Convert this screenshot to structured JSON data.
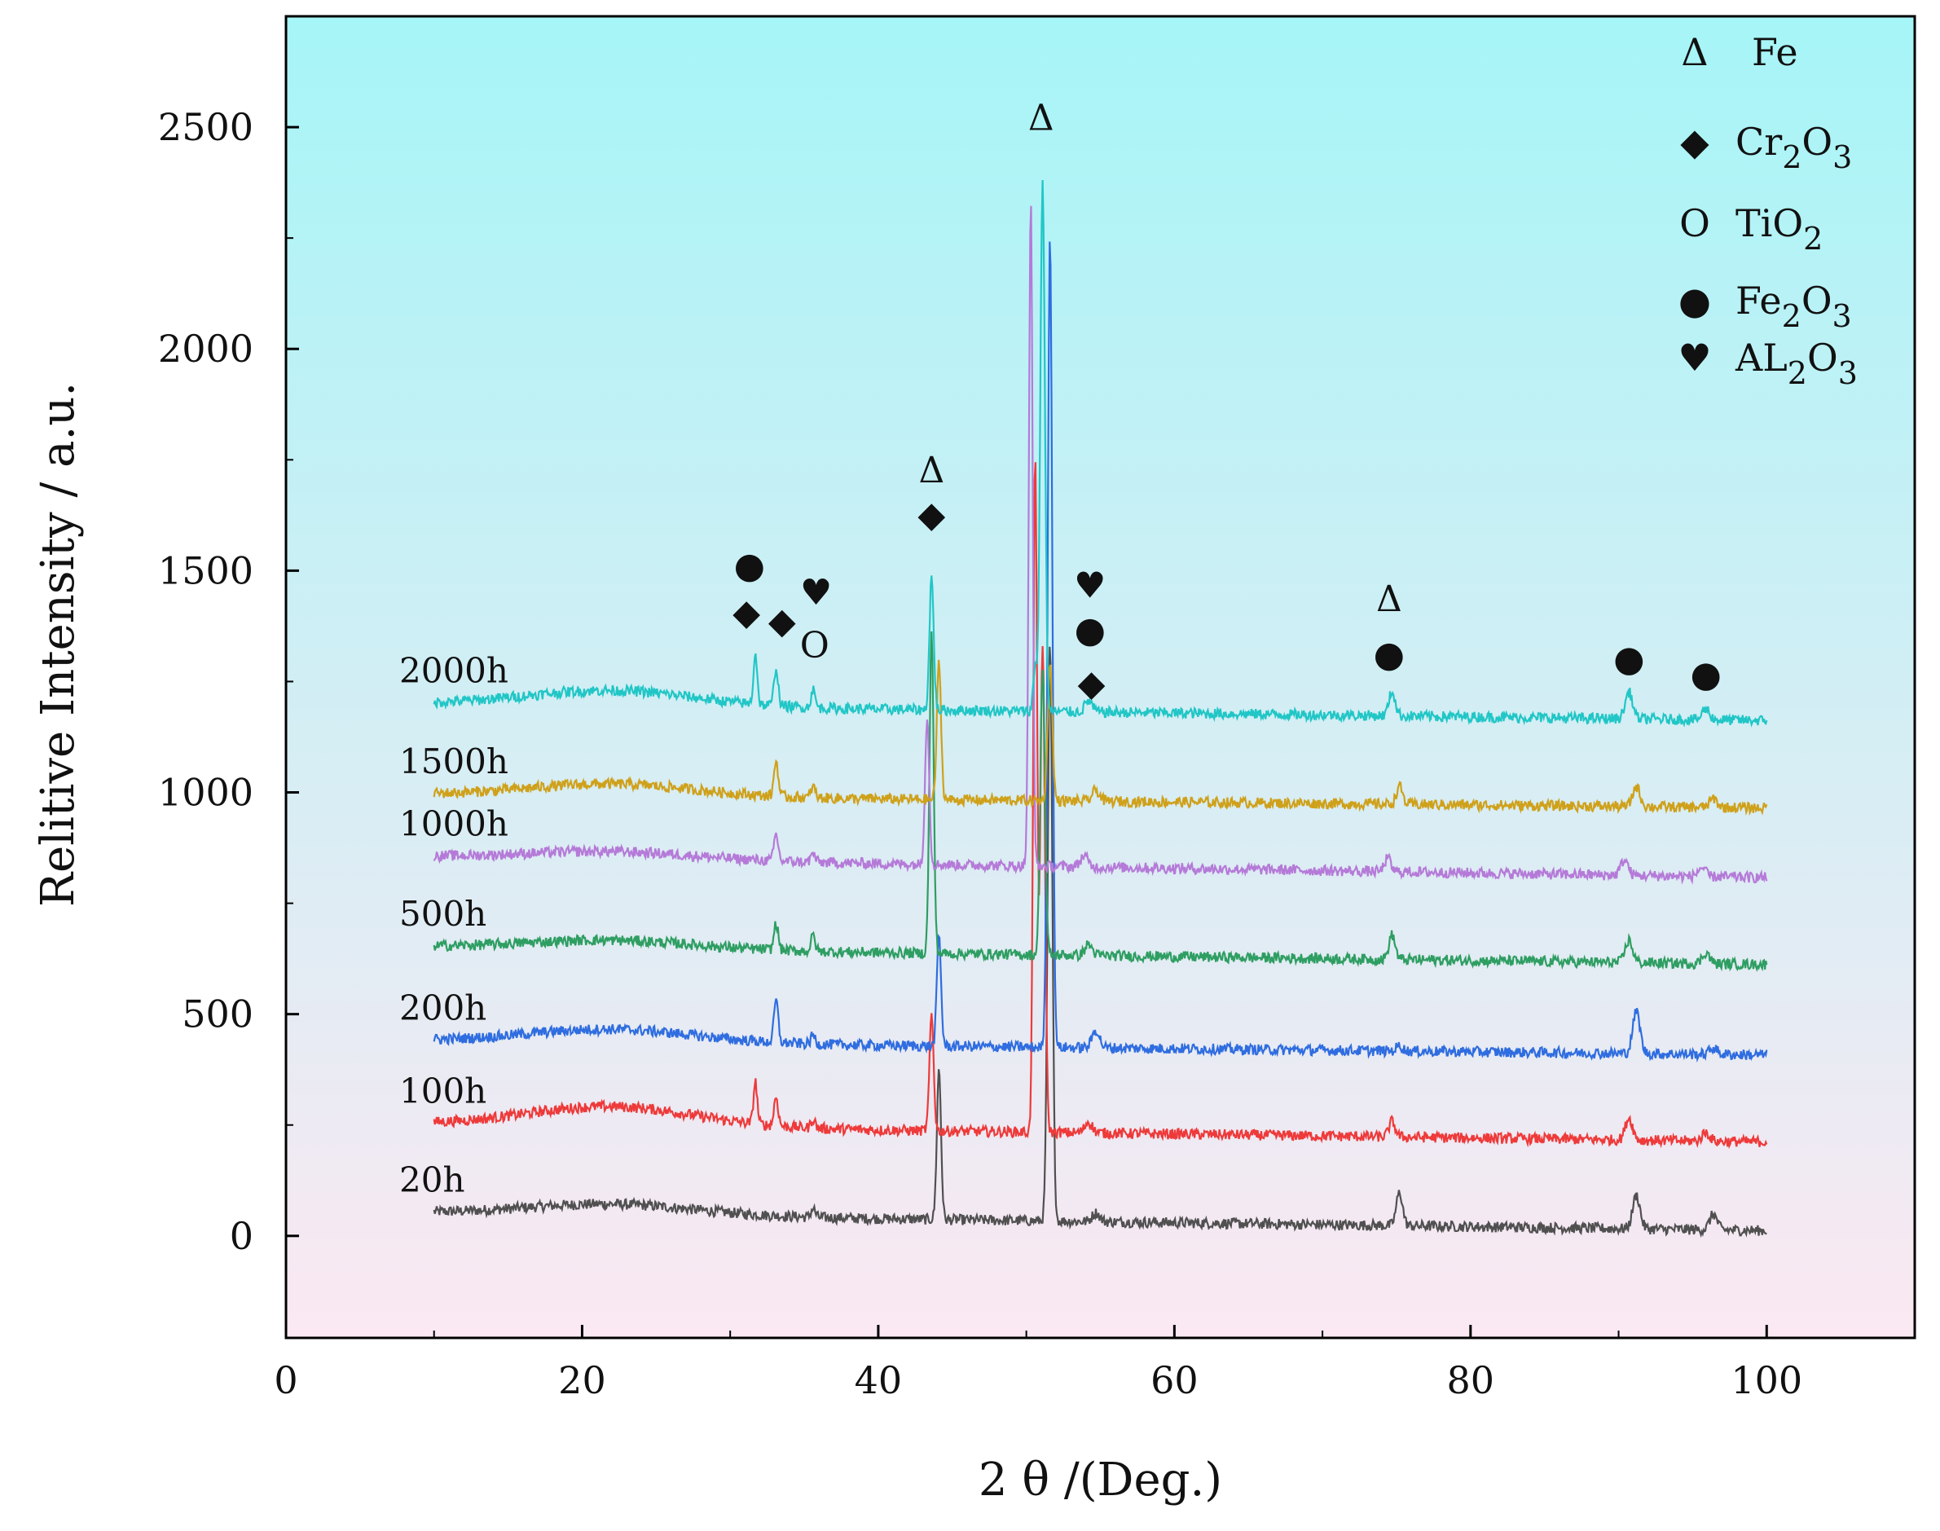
{
  "chart_data": {
    "type": "line",
    "xlabel": "2 θ /(Deg.)",
    "ylabel": "Relitive Intensity / a.u.",
    "xlim": [
      0,
      110
    ],
    "ylim": [
      -230,
      2750
    ],
    "x_ticks": [
      0,
      20,
      40,
      60,
      80,
      100
    ],
    "x_tick_labels": [
      "0",
      "20",
      "40",
      "60",
      "80",
      "100"
    ],
    "y_ticks": [
      0,
      500,
      1000,
      1500,
      2000,
      2500
    ],
    "y_tick_labels": [
      "0",
      "500",
      "1000",
      "1500",
      "2000",
      "2500"
    ],
    "background": {
      "top_color": "#a6f5f7",
      "bottom_color": "#fbe8f2"
    },
    "legend": {
      "position": "top-right",
      "entries": [
        {
          "symbol": "Δ",
          "label": "Fe",
          "label_main": "Fe",
          "label_sub": ""
        },
        {
          "symbol": "◆",
          "label": "Cr2O3",
          "label_main": "Cr",
          "label_sub": "2",
          "label_rest": "O",
          "label_sub2": "3"
        },
        {
          "symbol": "O",
          "label": "TiO2",
          "label_main": "TiO",
          "label_sub": "2",
          "label_rest": "",
          "label_sub2": ""
        },
        {
          "symbol": "●",
          "label": "Fe2O3",
          "label_main": "Fe",
          "label_sub": "2",
          "label_rest": "O",
          "label_sub2": "3"
        },
        {
          "symbol": "♥",
          "label": "AL2O3",
          "label_main": "AL",
          "label_sub": "2",
          "label_rest": "O",
          "label_sub2": "3"
        }
      ]
    },
    "peaks": [
      {
        "pos": 31.7,
        "width": 0.18
      },
      {
        "pos": 33.1,
        "width": 0.2
      },
      {
        "pos": 35.6,
        "width": 0.2
      },
      {
        "pos": 43.6,
        "width": 0.2
      },
      {
        "pos": 50.6,
        "width": 0.18
      },
      {
        "pos": 51.1,
        "width": 0.22
      },
      {
        "pos": 54.2,
        "width": 0.35
      },
      {
        "pos": 74.7,
        "width": 0.3
      },
      {
        "pos": 90.7,
        "width": 0.35
      },
      {
        "pos": 95.9,
        "width": 0.35
      }
    ],
    "series": [
      {
        "name": "20h",
        "label": "20h",
        "color": "#505050",
        "baseline_start": 52,
        "baseline_end": 12,
        "hump": 25,
        "peak_heights": [
          0,
          0,
          20,
          340,
          0,
          1300,
          20,
          75,
          75,
          35
        ],
        "peak_shift": 0.5
      },
      {
        "name": "100h",
        "label": "100h",
        "color": "#ee3a3a",
        "baseline_start": 252,
        "baseline_end": 212,
        "hump": 45,
        "peak_heights": [
          95,
          65,
          20,
          260,
          1530,
          1100,
          25,
          35,
          50,
          20
        ],
        "peak_shift": 0
      },
      {
        "name": "200h",
        "label": "200h",
        "color": "#2f6de0",
        "baseline_start": 440,
        "baseline_end": 408,
        "hump": 30,
        "peak_heights": [
          0,
          95,
          20,
          250,
          0,
          1830,
          40,
          12,
          95,
          15
        ],
        "peak_shift": 0.5
      },
      {
        "name": "500h",
        "label": "500h",
        "color": "#2e9e62",
        "baseline_start": 652,
        "baseline_end": 612,
        "hump": 20,
        "peak_heights": [
          0,
          60,
          35,
          720,
          0,
          650,
          25,
          55,
          50,
          25
        ],
        "peak_shift": 0
      },
      {
        "name": "1000h",
        "label": "1000h",
        "color": "#b57ad8",
        "baseline_start": 855,
        "baseline_end": 808,
        "hump": 18,
        "peak_heights": [
          0,
          60,
          20,
          330,
          1500,
          0,
          25,
          30,
          35,
          20
        ],
        "peak_shift": -0.3
      },
      {
        "name": "1500h",
        "label": "1500h",
        "color": "#cfa11a",
        "baseline_start": 995,
        "baseline_end": 965,
        "hump": 28,
        "peak_heights": [
          0,
          80,
          25,
          310,
          0,
          310,
          25,
          40,
          45,
          20
        ],
        "peak_shift": 0.5
      },
      {
        "name": "2000h",
        "label": "2000h",
        "color": "#21c6c6",
        "baseline_start": 1200,
        "baseline_end": 1162,
        "hump": 35,
        "peak_heights": [
          115,
          85,
          40,
          300,
          100,
          1190,
          25,
          55,
          60,
          25
        ],
        "peak_shift": 0
      }
    ],
    "annotations": [
      {
        "symbol": "●",
        "x": 31.3,
        "y": 1505
      },
      {
        "symbol": "◆",
        "x": 31.1,
        "y": 1400
      },
      {
        "symbol": "◆",
        "x": 33.5,
        "y": 1380
      },
      {
        "symbol": "♥",
        "x": 35.8,
        "y": 1445
      },
      {
        "symbol": "O",
        "x": 35.7,
        "y": 1325
      },
      {
        "symbol": "Δ",
        "x": 43.6,
        "y": 1720
      },
      {
        "symbol": "◆",
        "x": 43.6,
        "y": 1620
      },
      {
        "symbol": "Δ",
        "x": 51.0,
        "y": 2515
      },
      {
        "symbol": "♥",
        "x": 54.3,
        "y": 1460
      },
      {
        "symbol": "●",
        "x": 54.3,
        "y": 1360
      },
      {
        "symbol": "◆",
        "x": 54.4,
        "y": 1240
      },
      {
        "symbol": "Δ",
        "x": 74.5,
        "y": 1430
      },
      {
        "symbol": "●",
        "x": 74.5,
        "y": 1305
      },
      {
        "symbol": "●",
        "x": 90.7,
        "y": 1295
      },
      {
        "symbol": "●",
        "x": 95.9,
        "y": 1260
      }
    ]
  }
}
